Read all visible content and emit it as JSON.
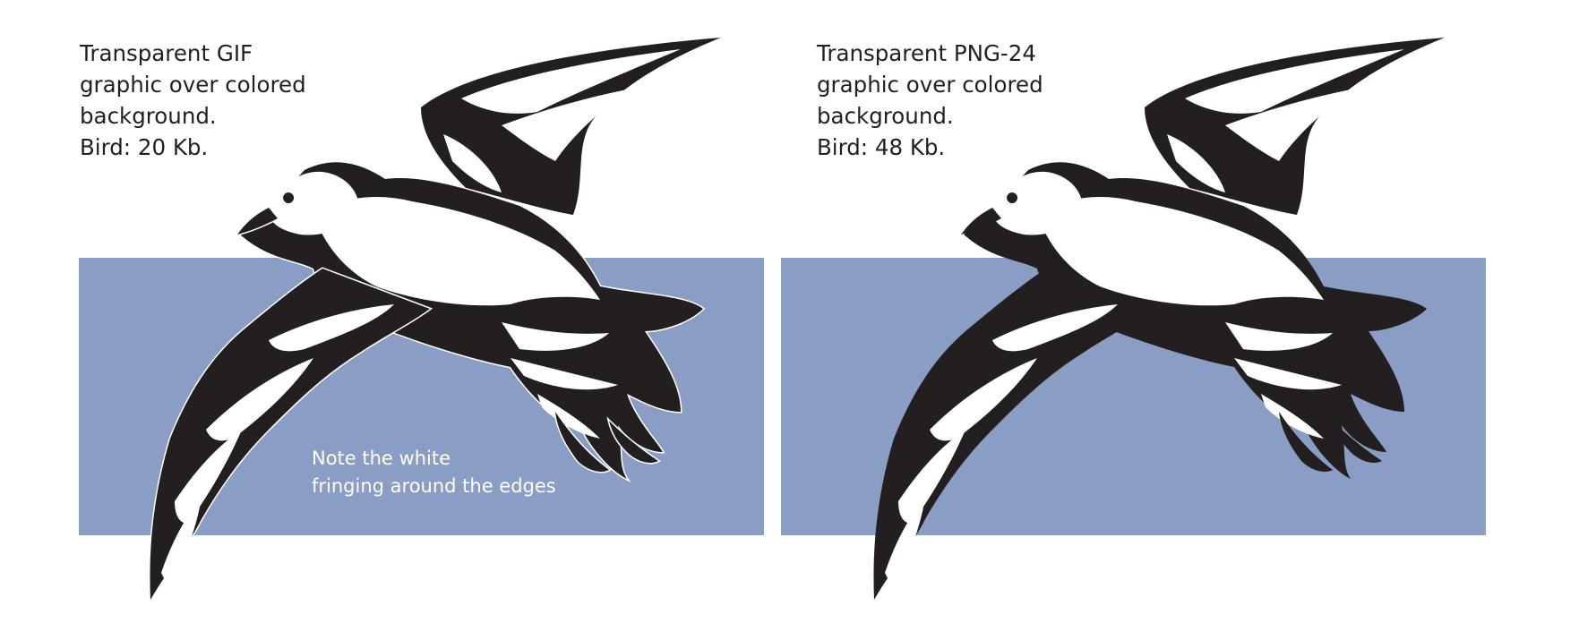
{
  "colors": {
    "background_rect": "#8a9dc4",
    "bird_dark": "#231f20",
    "bird_light": "#ffffff",
    "caption_text": "#231f20",
    "note_text": "#ffffff"
  },
  "panels": [
    {
      "id": "gif",
      "caption_lines": [
        "Transparent GIF",
        "graphic over colored",
        "background.",
        "Bird: 20 Kb."
      ],
      "note_lines": [
        "Note the white",
        "fringing around the edges"
      ]
    },
    {
      "id": "png",
      "caption_lines": [
        "Transparent PNG-24",
        "graphic over colored",
        "background.",
        "Bird: 48 Kb."
      ]
    }
  ]
}
